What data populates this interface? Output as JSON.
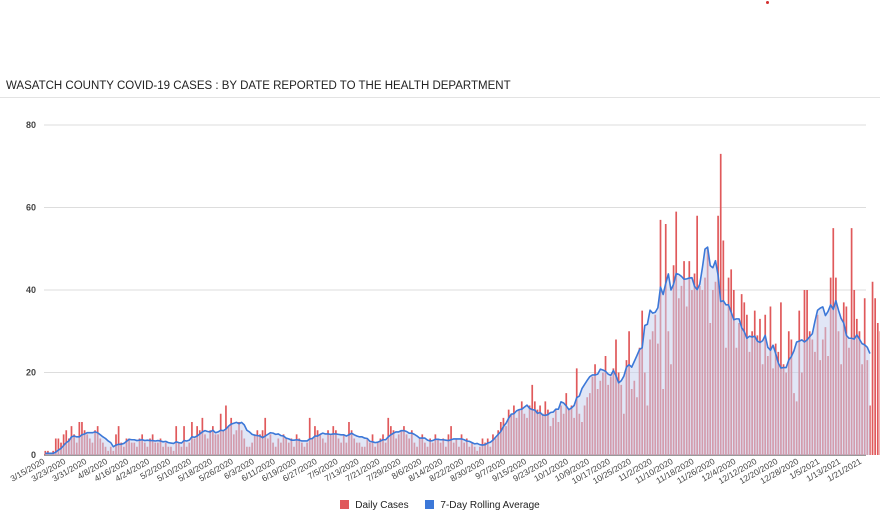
{
  "colors": {
    "daily": "#e0595b",
    "rolling_line": "#3c78d8",
    "rolling_fill": "#c8d1ef",
    "accent_dot": "#d32f2f"
  },
  "chart_data": {
    "type": "bar",
    "title": "WASATCH COUNTY COVID-19 CASES : BY DATE REPORTED TO THE HEALTH DEPARTMENT",
    "xlabel": "",
    "ylabel": "",
    "ylim": [
      0,
      80
    ],
    "yticks": [
      "0",
      "20",
      "40",
      "60",
      "80"
    ],
    "grid": true,
    "legend_position": "bottom",
    "x_start": "2020-03-15",
    "x_end": "2021-01-22",
    "x_tick_labels": [
      "3/15/2020",
      "3/23/2020",
      "3/31/2020",
      "4/8/2020",
      "4/16/2020",
      "4/24/2020",
      "5/2/2020",
      "5/10/2020",
      "5/18/2020",
      "5/26/2020",
      "6/3/2020",
      "6/11/2020",
      "6/19/2020",
      "6/27/2020",
      "7/5/2020",
      "7/13/2020",
      "7/21/2020",
      "7/29/2020",
      "8/6/2020",
      "8/14/2020",
      "8/22/2020",
      "8/30/2020",
      "9/7/2020",
      "9/15/2020",
      "9/23/2020",
      "10/1/2020",
      "10/9/2020",
      "10/17/2020",
      "10/25/2020",
      "11/2/2020",
      "11/10/2020",
      "11/18/2020",
      "11/26/2020",
      "12/4/2020",
      "12/12/2020",
      "12/20/2020",
      "12/28/2020",
      "1/5/2021",
      "1/13/2021",
      "1/21/2021"
    ],
    "series": [
      {
        "name": "Daily Cases",
        "type": "bar",
        "values": [
          1,
          1,
          0,
          1,
          4,
          4,
          3,
          5,
          6,
          4,
          7,
          5,
          3,
          8,
          8,
          6,
          5,
          4,
          3,
          6,
          7,
          4,
          3,
          2,
          1,
          2,
          1,
          5,
          7,
          3,
          2,
          4,
          4,
          3,
          3,
          2,
          4,
          5,
          3,
          2,
          4,
          5,
          3,
          3,
          4,
          2,
          3,
          2,
          2,
          1,
          7,
          3,
          2,
          7,
          2,
          3,
          8,
          4,
          7,
          6,
          9,
          5,
          4,
          6,
          7,
          5,
          5,
          10,
          6,
          12,
          7,
          9,
          5,
          6,
          8,
          6,
          4,
          2,
          2,
          3,
          5,
          6,
          5,
          6,
          9,
          4,
          5,
          3,
          2,
          4,
          3,
          5,
          4,
          3,
          4,
          2,
          5,
          4,
          3,
          2,
          3,
          9,
          4,
          7,
          6,
          5,
          4,
          3,
          6,
          5,
          7,
          6,
          4,
          3,
          5,
          3,
          8,
          6,
          4,
          3,
          3,
          2,
          2,
          4,
          3,
          5,
          2,
          3,
          4,
          5,
          3,
          9,
          7,
          6,
          4,
          5,
          6,
          7,
          5,
          4,
          6,
          3,
          2,
          4,
          5,
          3,
          2,
          4,
          3,
          5,
          4,
          3,
          4,
          2,
          5,
          7,
          3,
          4,
          2,
          5,
          3,
          4,
          2,
          3,
          2,
          1,
          2,
          4,
          3,
          4,
          2,
          5,
          4,
          6,
          8,
          9,
          7,
          11,
          10,
          12,
          9,
          11,
          13,
          10,
          9,
          12,
          17,
          13,
          11,
          12,
          10,
          13,
          11,
          7,
          9,
          11,
          8,
          12,
          10,
          15,
          11,
          12,
          9,
          21,
          10,
          8,
          12,
          14,
          15,
          19,
          22,
          16,
          18,
          20,
          24,
          17,
          19,
          21,
          28,
          20,
          17,
          10,
          23,
          30,
          16,
          18,
          14,
          26,
          35,
          20,
          12,
          28,
          30,
          34,
          27,
          57,
          16,
          56,
          30,
          22,
          46,
          59,
          38,
          41,
          47,
          36,
          47,
          40,
          44,
          58,
          41,
          40,
          43,
          50,
          32,
          40,
          42,
          58,
          73,
          52,
          26,
          43,
          45,
          40,
          26,
          32,
          39,
          37,
          34,
          25,
          30,
          35,
          29,
          33,
          22,
          34,
          24,
          36,
          21,
          27,
          25,
          37,
          22,
          20,
          30,
          28,
          15,
          13,
          35,
          20,
          40,
          40,
          30,
          28,
          25,
          34,
          23,
          28,
          31,
          24,
          43,
          55,
          43,
          30,
          22,
          37,
          36,
          26,
          55,
          40,
          33,
          30,
          22,
          38,
          23,
          12,
          42,
          38,
          32,
          30,
          28,
          20,
          10
        ]
      },
      {
        "name": "7-Day Rolling Average",
        "type": "area",
        "values": [
          0.4,
          0.4,
          0.4,
          0.4,
          0.7,
          1.2,
          1.6,
          2.3,
          3.0,
          3.4,
          4.4,
          4.6,
          4.4,
          4.4,
          4.9,
          5.1,
          5.4,
          5.4,
          5.4,
          5.6,
          5.4,
          4.9,
          4.4,
          4.0,
          3.4,
          3.0,
          2.0,
          2.4,
          2.6,
          2.6,
          2.8,
          3.3,
          3.8,
          3.7,
          3.7,
          3.5,
          3.6,
          3.7,
          3.5,
          3.6,
          3.5,
          3.5,
          3.4,
          3.5,
          3.4,
          3.2,
          3.3,
          3.0,
          2.9,
          2.8,
          3.2,
          3.0,
          2.9,
          3.5,
          3.4,
          3.6,
          4.4,
          4.3,
          4.6,
          5.1,
          5.6,
          5.9,
          5.7,
          5.6,
          6.0,
          5.4,
          5.6,
          6.0,
          5.9,
          6.3,
          7.0,
          7.5,
          7.7,
          7.9,
          7.6,
          7.9,
          7.3,
          6.0,
          5.6,
          5.0,
          4.8,
          4.7,
          4.6,
          4.2,
          4.6,
          5.0,
          5.4,
          5.3,
          5.0,
          5.1,
          4.7,
          4.6,
          4.1,
          3.9,
          3.6,
          3.6,
          3.7,
          3.6,
          3.4,
          3.4,
          3.4,
          3.9,
          4.0,
          4.6,
          4.6,
          5.0,
          5.3,
          5.1,
          5.1,
          5.0,
          5.1,
          5.1,
          5.0,
          4.9,
          4.9,
          4.6,
          4.9,
          5.3,
          4.9,
          4.6,
          4.4,
          4.4,
          4.1,
          4.0,
          3.3,
          3.2,
          3.0,
          3.1,
          3.4,
          3.7,
          3.7,
          4.4,
          4.9,
          5.3,
          5.6,
          5.6,
          5.9,
          5.9,
          5.7,
          5.3,
          5.3,
          5.0,
          4.6,
          4.1,
          4.1,
          4.1,
          3.6,
          3.4,
          3.5,
          3.8,
          3.8,
          3.7,
          3.7,
          3.6,
          3.5,
          3.7,
          3.9,
          3.9,
          3.9,
          3.9,
          3.7,
          3.4,
          3.3,
          3.0,
          2.7,
          2.8,
          2.5,
          2.4,
          2.5,
          2.9,
          3.1,
          3.6,
          4.3,
          5.0,
          5.7,
          6.9,
          7.7,
          8.9,
          9.9,
          10.0,
          10.7,
          11.0,
          11.1,
          11.6,
          12.1,
          11.3,
          11.0,
          10.9,
          10.1,
          10.3,
          9.7,
          9.6,
          9.8,
          10.3,
          10.4,
          11.1,
          11.1,
          12.9,
          12.6,
          11.9,
          11.0,
          11.4,
          12.0,
          13.9,
          14.3,
          16.1,
          17.1,
          18.1,
          19.0,
          19.4,
          19.4,
          19.6,
          20.8,
          20.6,
          20.3,
          19.6,
          19.3,
          20.5,
          19.2,
          17.5,
          18.0,
          19.1,
          21.3,
          21.9,
          21.3,
          22.7,
          24.1,
          25.6,
          26.0,
          31.4,
          31.7,
          35.1,
          34.4,
          34.6,
          35.7,
          40.7,
          38.9,
          41.6,
          43.9,
          40.0,
          41.4,
          44.0,
          43.8,
          43.3,
          42.6,
          42.7,
          42.9,
          43.0,
          40.9,
          40.1,
          41.4,
          45.4,
          49.9,
          50.4,
          45.9,
          45.4,
          47.1,
          43.6,
          37.2,
          37.4,
          36.4,
          36.4,
          34.6,
          32.8,
          33.0,
          33.0,
          30.9,
          29.9,
          28.3,
          28.8,
          28.6,
          28.8,
          27.6,
          27.3,
          27.7,
          29.0,
          26.1,
          25.4,
          26.6,
          24.6,
          22.3,
          21.1,
          21.2,
          21.2,
          23.0,
          23.9,
          25.3,
          27.4,
          27.6,
          27.9,
          27.4,
          27.9,
          28.7,
          29.4,
          32.4,
          35.1,
          35.6,
          35.9,
          33.8,
          34.8,
          36.4,
          35.3,
          37.4,
          35.1,
          33.1,
          32.0,
          29.0,
          28.3,
          28.3,
          28.1,
          29.1,
          28.1,
          27.0,
          26.7,
          26.1,
          24.6
        ]
      }
    ]
  }
}
